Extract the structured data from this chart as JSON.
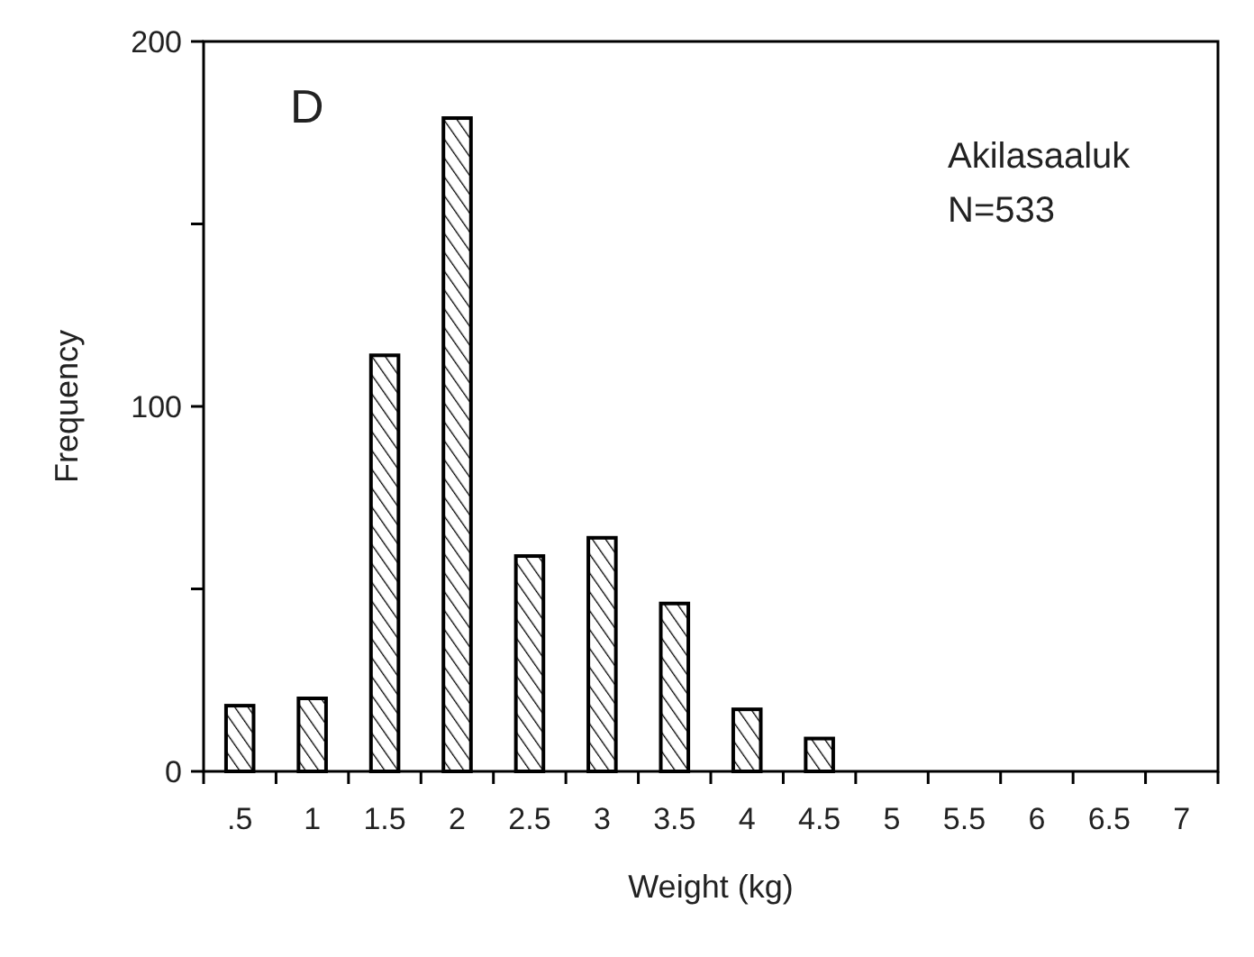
{
  "chart_data": {
    "type": "bar",
    "xlabel": "Weight (kg)",
    "ylabel": "Frequency",
    "categories": [
      ".5",
      "1",
      "1.5",
      "2",
      "2.5",
      "3",
      "3.5",
      "4",
      "4.5",
      "5",
      "5.5",
      "6",
      "6.5",
      "7"
    ],
    "values": [
      18,
      20,
      114,
      179,
      59,
      64,
      46,
      17,
      9,
      0,
      0,
      0,
      0,
      0
    ],
    "color": "#000000",
    "ylim": [
      0,
      200
    ],
    "yticks": [
      0,
      {
        "value": 50,
        "label": null
      },
      100,
      {
        "value": 150,
        "label": null
      },
      200
    ],
    "grid": false,
    "annotations": [
      "D",
      "Akilasaaluk",
      "N=533"
    ]
  }
}
